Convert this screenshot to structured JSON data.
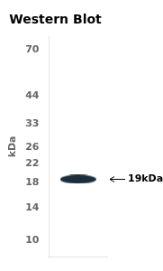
{
  "chart_data": {
    "type": "scatter",
    "title": "Western Blot",
    "y_label": "kDa",
    "values": [
      18.7
    ],
    "color": "#1c2d3c",
    "log": "y",
    "ylim": [
      8.5,
      80
    ],
    "yticks": [
      70,
      44,
      33,
      26,
      22,
      18,
      14,
      10
    ],
    "tick_labels": "y",
    "grid": false,
    "annotations": [
      {
        "text": "19kDa",
        "y": 18.7
      }
    ]
  }
}
